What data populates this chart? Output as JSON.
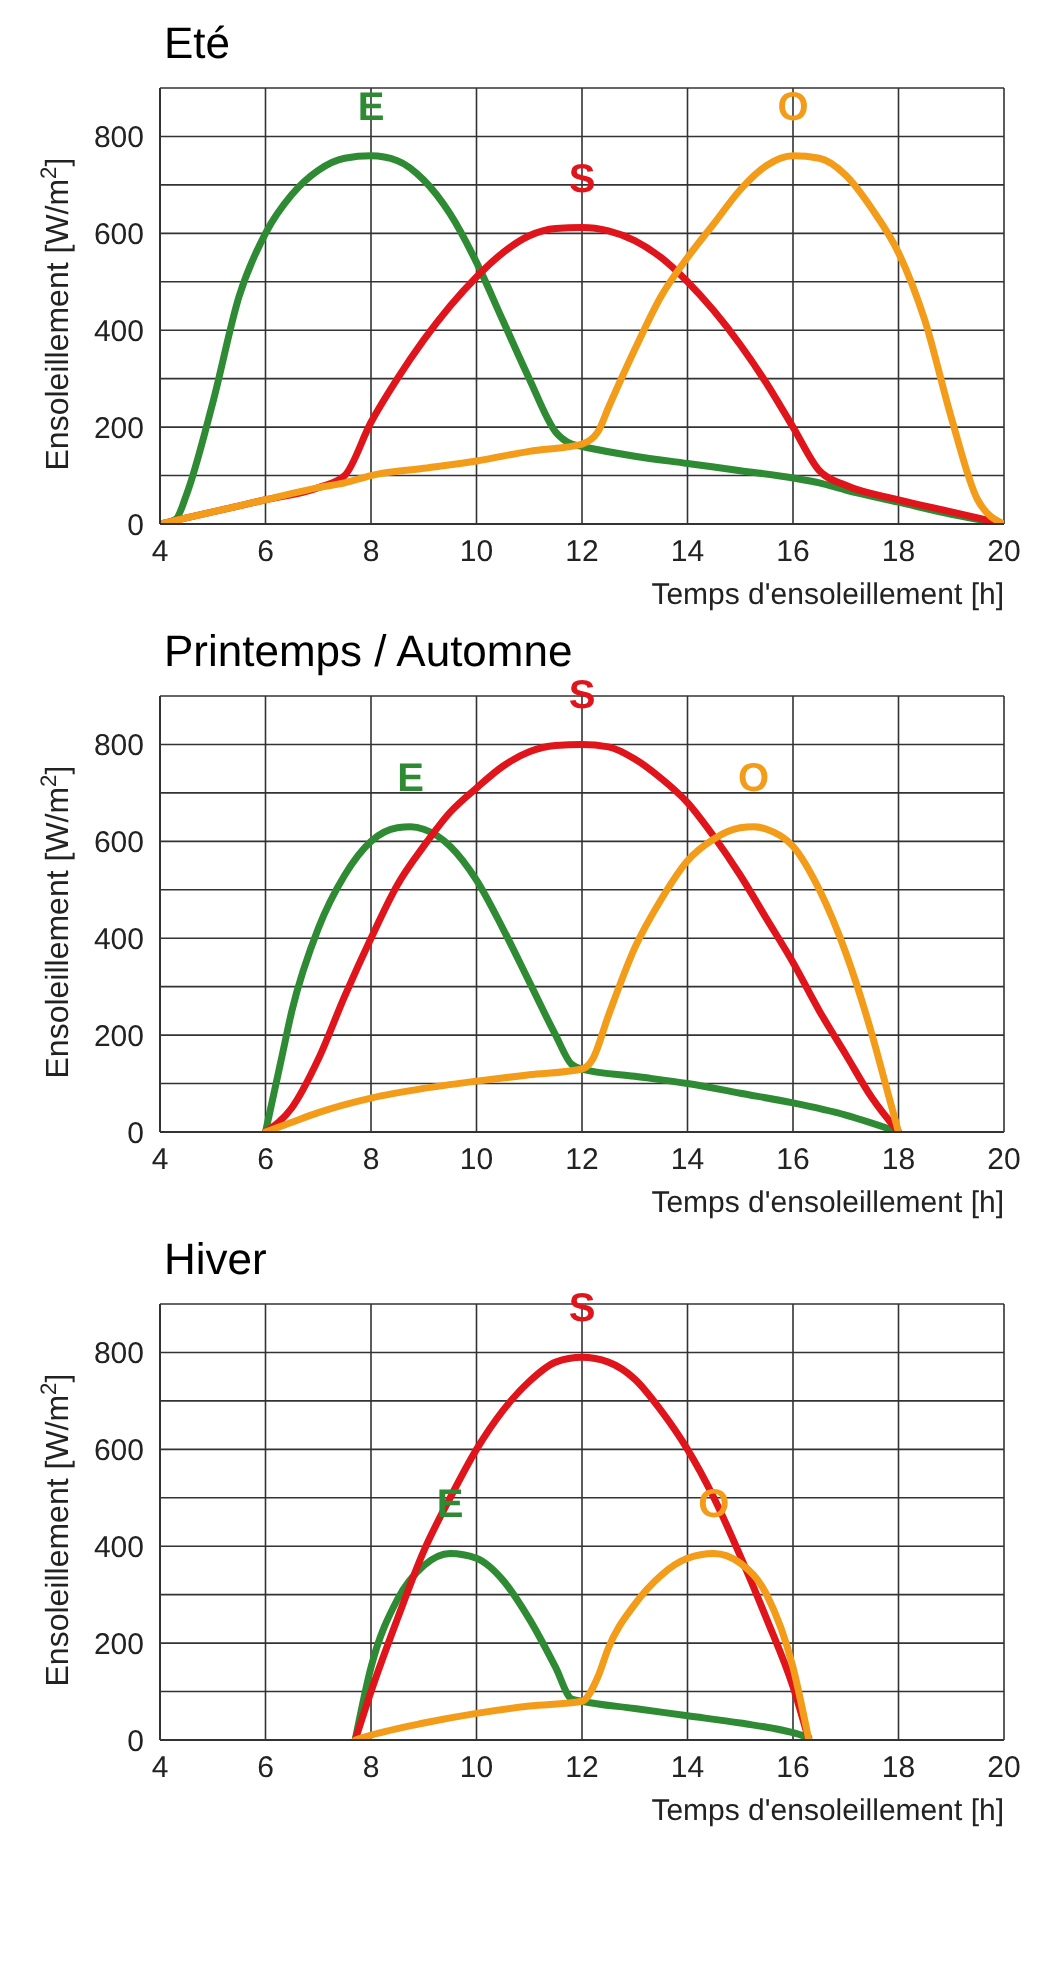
{
  "chart_data": [
    {
      "type": "line",
      "title": "Eté",
      "xlabel": "Temps d'ensoleillement [h]",
      "ylabel": "Ensoleillement [W/m$^{2}$]",
      "xlim": [
        4,
        20
      ],
      "xticks": [
        4,
        6,
        8,
        10,
        12,
        14,
        16,
        18,
        20
      ],
      "ylim": [
        0,
        900
      ],
      "yticks": [
        0,
        {
          "value": 100,
          "label": null
        },
        200,
        {
          "value": 300,
          "label": null
        },
        400,
        {
          "value": 500,
          "label": null
        },
        600,
        {
          "value": 700,
          "label": null
        },
        800,
        {
          "value": 900,
          "label": null
        }
      ],
      "grid": true,
      "legend": false,
      "marker": "none",
      "line_style": "solid",
      "series": [
        {
          "name": "E",
          "color": "#2e8b34",
          "x": [
            4,
            4.3,
            4.5,
            5,
            5.5,
            6,
            6.5,
            7,
            7.5,
            8,
            8.5,
            9,
            9.5,
            10,
            10.5,
            11,
            11.5,
            11.8,
            12,
            13,
            14,
            15,
            16,
            16.5,
            17,
            18,
            19,
            20
          ],
          "values": [
            0,
            10,
            60,
            250,
            470,
            600,
            680,
            730,
            755,
            760,
            750,
            710,
            640,
            540,
            420,
            300,
            190,
            165,
            160,
            140,
            125,
            110,
            95,
            85,
            70,
            45,
            20,
            0
          ]
        },
        {
          "name": "S",
          "color": "#e0141b",
          "x": [
            4,
            5,
            6,
            7,
            7.5,
            8,
            8.5,
            9,
            9.5,
            10,
            10.5,
            11,
            11.5,
            12,
            12.5,
            13,
            13.5,
            14,
            14.5,
            15,
            15.5,
            16,
            16.5,
            17,
            18,
            19,
            20
          ],
          "values": [
            0,
            25,
            50,
            75,
            100,
            210,
            300,
            380,
            450,
            510,
            560,
            595,
            610,
            612,
            605,
            585,
            550,
            500,
            440,
            370,
            290,
            200,
            110,
            80,
            50,
            25,
            0
          ]
        },
        {
          "name": "O",
          "color": "#f39c1a",
          "x": [
            4,
            5,
            6,
            7,
            7.5,
            8,
            9,
            10,
            11,
            12,
            12.3,
            12.5,
            13,
            13.5,
            14,
            14.5,
            15,
            15.5,
            16,
            16.5,
            17,
            17.5,
            18,
            18.5,
            19,
            19.5,
            20
          ],
          "values": [
            0,
            25,
            50,
            75,
            85,
            100,
            115,
            130,
            150,
            165,
            190,
            240,
            360,
            470,
            550,
            620,
            690,
            740,
            760,
            755,
            720,
            650,
            560,
            420,
            220,
            50,
            0
          ]
        }
      ]
    },
    {
      "type": "line",
      "title": "Printemps / Automne",
      "xlabel": "Temps d'ensoleillement [h]",
      "ylabel": "Ensoleillement [W/m$^{2}$]",
      "xlim": [
        4,
        20
      ],
      "xticks": [
        4,
        6,
        8,
        10,
        12,
        14,
        16,
        18,
        20
      ],
      "ylim": [
        0,
        900
      ],
      "yticks": [
        0,
        {
          "value": 100,
          "label": null
        },
        200,
        {
          "value": 300,
          "label": null
        },
        400,
        {
          "value": 500,
          "label": null
        },
        600,
        {
          "value": 700,
          "label": null
        },
        800,
        {
          "value": 900,
          "label": null
        }
      ],
      "grid": true,
      "legend": false,
      "marker": "none",
      "line_style": "solid",
      "series": [
        {
          "name": "E",
          "color": "#2e8b34",
          "x": [
            6,
            6.3,
            6.5,
            7,
            7.5,
            8,
            8.5,
            8.75,
            9,
            9.5,
            10,
            10.5,
            11,
            11.5,
            11.8,
            12,
            13,
            14,
            15,
            16,
            17,
            18
          ],
          "values": [
            0,
            150,
            250,
            420,
            530,
            600,
            628,
            630,
            625,
            590,
            520,
            420,
            310,
            200,
            140,
            130,
            115,
            100,
            80,
            60,
            35,
            0
          ]
        },
        {
          "name": "S",
          "color": "#e0141b",
          "x": [
            6,
            6.5,
            7,
            7.5,
            8,
            8.5,
            9,
            9.5,
            10,
            10.5,
            11,
            11.5,
            12,
            12.5,
            13,
            13.5,
            14,
            14.5,
            15,
            15.5,
            16,
            16.5,
            17,
            17.5,
            18
          ],
          "values": [
            0,
            50,
            150,
            280,
            400,
            510,
            590,
            660,
            710,
            755,
            785,
            798,
            800,
            795,
            770,
            730,
            680,
            610,
            530,
            440,
            350,
            250,
            160,
            70,
            0
          ]
        },
        {
          "name": "O",
          "color": "#f39c1a",
          "x": [
            6,
            6.5,
            7,
            8,
            9,
            10,
            11,
            12,
            12.2,
            12.5,
            13,
            13.5,
            14,
            14.5,
            15,
            15.25,
            15.5,
            16,
            16.5,
            17,
            17.5,
            17.8,
            18
          ],
          "values": [
            0,
            20,
            40,
            70,
            90,
            105,
            118,
            130,
            150,
            240,
            380,
            480,
            560,
            605,
            628,
            630,
            625,
            590,
            500,
            370,
            200,
            80,
            0
          ]
        }
      ]
    },
    {
      "type": "line",
      "title": "Hiver",
      "xlabel": "Temps d'ensoleillement [h]",
      "ylabel": "Ensoleillement [W/m$^{2}$]",
      "xlim": [
        4,
        20
      ],
      "xticks": [
        4,
        6,
        8,
        10,
        12,
        14,
        16,
        18,
        20
      ],
      "ylim": [
        0,
        900
      ],
      "yticks": [
        0,
        {
          "value": 100,
          "label": null
        },
        200,
        {
          "value": 300,
          "label": null
        },
        400,
        {
          "value": 500,
          "label": null
        },
        600,
        {
          "value": 700,
          "label": null
        },
        800,
        {
          "value": 900,
          "label": null
        }
      ],
      "grid": true,
      "legend": false,
      "marker": "none",
      "line_style": "solid",
      "series": [
        {
          "name": "E",
          "color": "#2e8b34",
          "x": [
            7.7,
            8,
            8.5,
            9,
            9.5,
            10,
            10.5,
            11,
            11.5,
            11.8,
            12,
            13,
            14,
            15,
            16,
            16.3
          ],
          "values": [
            0,
            150,
            290,
            360,
            385,
            375,
            330,
            250,
            150,
            85,
            80,
            65,
            50,
            35,
            15,
            5
          ]
        },
        {
          "name": "S",
          "color": "#e0141b",
          "x": [
            7.7,
            8,
            8.5,
            9,
            9.5,
            10,
            10.5,
            11,
            11.5,
            12,
            12.5,
            13,
            13.5,
            14,
            14.5,
            15,
            15.5,
            16,
            16.3
          ],
          "values": [
            0,
            100,
            250,
            390,
            500,
            600,
            680,
            740,
            780,
            790,
            780,
            745,
            680,
            600,
            500,
            380,
            250,
            110,
            0
          ]
        },
        {
          "name": "O",
          "color": "#f39c1a",
          "x": [
            7.7,
            8,
            9,
            10,
            11,
            12,
            12.3,
            12.5,
            13,
            13.5,
            14,
            14.5,
            15,
            15.5,
            16,
            16.3
          ],
          "values": [
            0,
            10,
            35,
            55,
            70,
            80,
            130,
            190,
            280,
            340,
            375,
            385,
            365,
            300,
            150,
            0
          ]
        }
      ]
    }
  ]
}
